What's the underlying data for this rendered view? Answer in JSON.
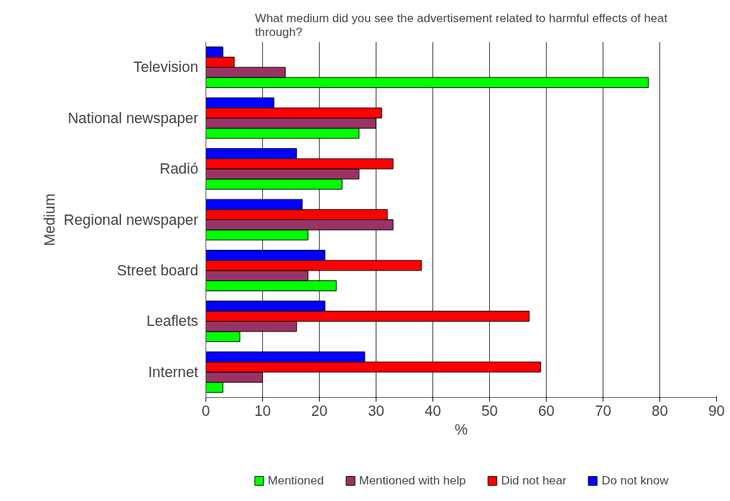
{
  "chart_data": {
    "type": "bar",
    "orientation": "horizontal",
    "title": "What medium did you see the advertisement related to harmful effects of heat through?",
    "xlabel": "%",
    "ylabel": "Medium",
    "categories": [
      "Television",
      "National newspaper",
      "Radió",
      "Regional newspaper",
      "Street board",
      "Leaflets",
      "Internet"
    ],
    "series": [
      {
        "name": "Mentioned",
        "color": "#00ff00",
        "values": [
          78,
          27,
          24,
          18,
          23,
          6,
          3
        ]
      },
      {
        "name": "Mentioned with help",
        "color": "#993366",
        "values": [
          14,
          30,
          27,
          33,
          18,
          16,
          10
        ]
      },
      {
        "name": "Did not hear",
        "color": "#ff0000",
        "values": [
          5,
          31,
          33,
          32,
          38,
          57,
          59
        ]
      },
      {
        "name": "Do not know",
        "color": "#0000ff",
        "values": [
          3,
          12,
          16,
          17,
          21,
          21,
          28
        ]
      }
    ],
    "xlim": [
      0,
      90
    ],
    "xticks": [
      0,
      10,
      20,
      30,
      40,
      50,
      60,
      70,
      80,
      90
    ],
    "grid": "x",
    "legend": "bottom"
  }
}
